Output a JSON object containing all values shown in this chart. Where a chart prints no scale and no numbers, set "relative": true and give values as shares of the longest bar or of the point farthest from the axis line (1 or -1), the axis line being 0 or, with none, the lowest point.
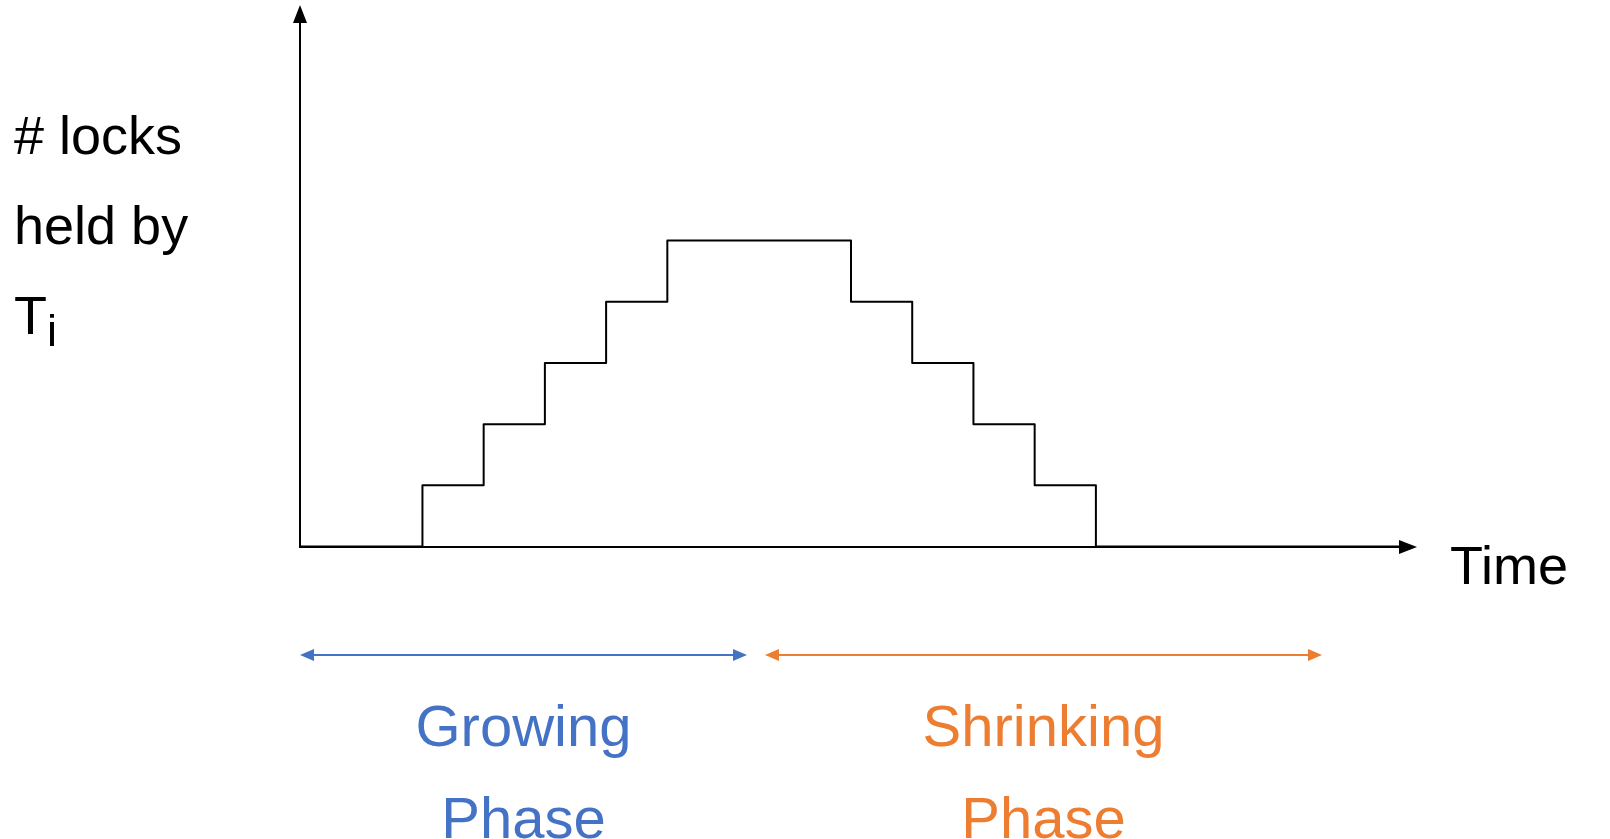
{
  "chart_data": {
    "type": "step",
    "xlabel": "Time",
    "ylabel": "# locks held by T$_{i}$",
    "relative": true,
    "grid": false,
    "legend": false,
    "marker": "none",
    "line_style": "solid",
    "categories": [
      null,
      null,
      null,
      null,
      null,
      null,
      null,
      null,
      null,
      null,
      null,
      null,
      null,
      null,
      null,
      null,
      null,
      null,
      null
    ],
    "series": [
      {
        "color": "#000000",
        "values": [
          0,
          0,
          0,
          0.2,
          0.4,
          0.6,
          0.8,
          1,
          1,
          1,
          0.8,
          0.6,
          0.4,
          0.2,
          0,
          0,
          0,
          0,
          0
        ]
      }
    ],
    "annotations": [
      "Growing Phase",
      "Shrinking Phase"
    ]
  }
}
